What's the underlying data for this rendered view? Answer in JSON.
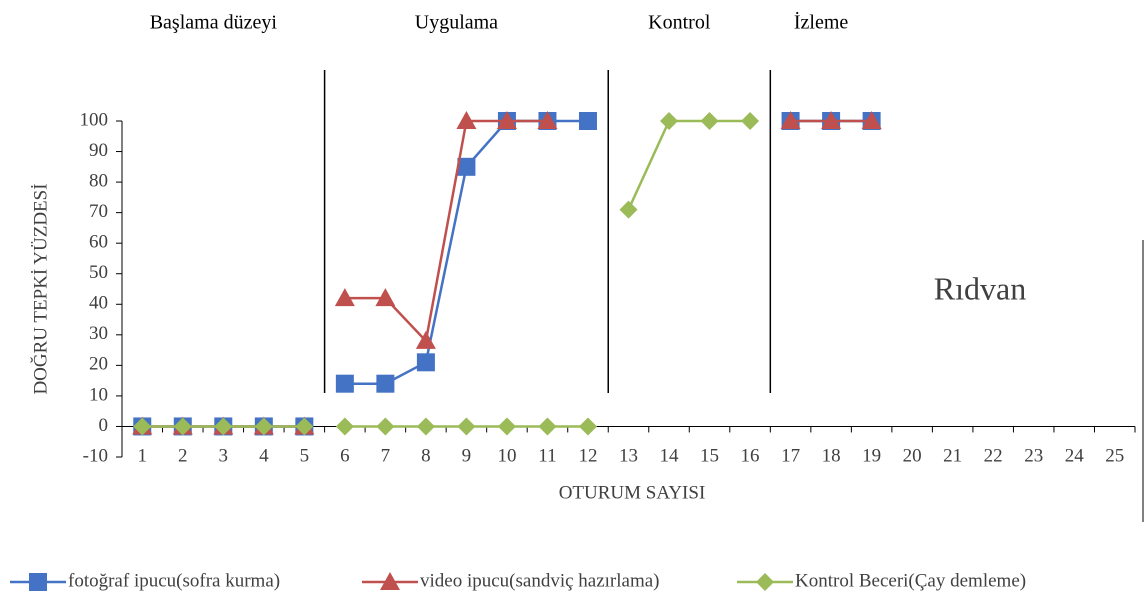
{
  "chart_data": {
    "type": "line",
    "categories": [
      "1",
      "2",
      "3",
      "4",
      "5",
      "6",
      "7",
      "8",
      "9",
      "10",
      "11",
      "12",
      "13",
      "14",
      "15",
      "16",
      "17",
      "18",
      "19",
      "20",
      "21",
      "22",
      "23",
      "24",
      "25"
    ],
    "series": [
      {
        "name": "fotoğraf ipucu(sofra kurma)",
        "color": "#4472c4",
        "marker": "square",
        "values": [
          0,
          0,
          0,
          0,
          0,
          14,
          14,
          21,
          85,
          100,
          100,
          100,
          null,
          null,
          null,
          null,
          100,
          100,
          100,
          null,
          null,
          null,
          null,
          null,
          null
        ]
      },
      {
        "name": "video ipucu(sandviç hazırlama)",
        "color": "#c0504d",
        "marker": "triangle",
        "values": [
          0,
          0,
          0,
          0,
          0,
          42,
          42,
          28,
          100,
          100,
          100,
          null,
          null,
          null,
          null,
          null,
          100,
          100,
          100,
          null,
          null,
          null,
          null,
          null,
          null
        ]
      },
      {
        "name": "Kontrol Beceri(Çay demleme)",
        "color": "#9bbb59",
        "marker": "diamond",
        "values": [
          0,
          0,
          0,
          0,
          0,
          0,
          0,
          0,
          0,
          0,
          0,
          0,
          71,
          100,
          100,
          100,
          null,
          null,
          null,
          null,
          null,
          null,
          null,
          null,
          null
        ]
      }
    ],
    "phases": [
      {
        "name": "Başlama düzeyi",
        "sessions": 5
      },
      {
        "name": "Uygulama",
        "sessions": 7
      },
      {
        "name": "Kontrol",
        "sessions": 4
      },
      {
        "name": "İzleme",
        "sessions": 3
      }
    ],
    "ylim": [
      -10,
      100
    ],
    "yticks": [
      -10,
      0,
      10,
      20,
      30,
      40,
      50,
      60,
      70,
      80,
      90,
      100
    ],
    "y_label": "DOĞRU TEPKİ YÜZDESİ",
    "x_label": "OTURUM SAYISI",
    "annotation": "Rıdvan",
    "legend": "bottom"
  }
}
